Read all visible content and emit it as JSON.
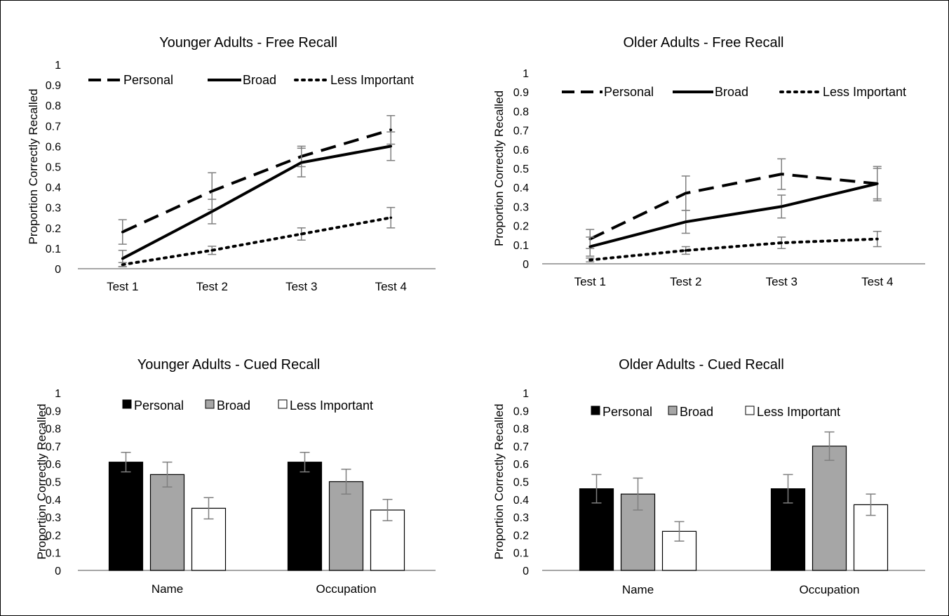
{
  "chart_data": [
    {
      "type": "line",
      "title": "Younger Adults - Free Recall",
      "xlabel": "",
      "ylabel": "Proportion Correctly Recalled",
      "ylim": [
        0,
        1
      ],
      "yticks": [
        "0",
        "0.1",
        "0.2",
        "0.3",
        "0.4",
        "0.5",
        "0.6",
        "0.7",
        "0.8",
        "0.9",
        "1"
      ],
      "categories": [
        "Test 1",
        "Test 2",
        "Test 3",
        "Test 4"
      ],
      "legend": "top",
      "series": [
        {
          "name": "Personal",
          "style": "dashed",
          "values": [
            0.18,
            0.38,
            0.55,
            0.68
          ],
          "errors": [
            0.06,
            0.09,
            0.05,
            0.07
          ]
        },
        {
          "name": "Broad",
          "style": "solid",
          "values": [
            0.05,
            0.28,
            0.52,
            0.6
          ],
          "errors": [
            0.04,
            0.06,
            0.07,
            0.07
          ]
        },
        {
          "name": "Less Important",
          "style": "dotted",
          "values": [
            0.02,
            0.09,
            0.17,
            0.25
          ],
          "errors": [
            0.01,
            0.02,
            0.03,
            0.05
          ]
        }
      ]
    },
    {
      "type": "line",
      "title": "Older Adults - Free Recall",
      "xlabel": "",
      "ylabel": "Proportion Correctly Recalled",
      "ylim": [
        0,
        1
      ],
      "yticks": [
        "0",
        "0.1",
        "0.2",
        "0.3",
        "0.4",
        "0.5",
        "0.6",
        "0.7",
        "0.8",
        "0.9",
        "1"
      ],
      "categories": [
        "Test 1",
        "Test 2",
        "Test 3",
        "Test 4"
      ],
      "legend": "top",
      "series": [
        {
          "name": "Personal",
          "style": "dashed",
          "values": [
            0.13,
            0.37,
            0.47,
            0.42
          ],
          "errors": [
            0.05,
            0.09,
            0.08,
            0.09
          ]
        },
        {
          "name": "Broad",
          "style": "solid",
          "values": [
            0.09,
            0.22,
            0.3,
            0.42
          ],
          "errors": [
            0.05,
            0.06,
            0.06,
            0.08
          ]
        },
        {
          "name": "Less Important",
          "style": "dotted",
          "values": [
            0.02,
            0.07,
            0.11,
            0.13
          ],
          "errors": [
            0.01,
            0.02,
            0.03,
            0.04
          ]
        }
      ]
    },
    {
      "type": "bar",
      "title": "Younger Adults - Cued Recall",
      "xlabel": "",
      "ylabel": "Proportion Correctly Recalled",
      "ylim": [
        0,
        1
      ],
      "yticks": [
        "0",
        "0.1",
        "0.2",
        "0.3",
        "0.4",
        "0.5",
        "0.6",
        "0.7",
        "0.8",
        "0.9",
        "1"
      ],
      "categories": [
        "Name",
        "Occupation"
      ],
      "legend": "top",
      "series": [
        {
          "name": "Personal",
          "fill": "#000000",
          "values": [
            0.61,
            0.61
          ],
          "errors": [
            0.055,
            0.055
          ]
        },
        {
          "name": "Broad",
          "fill": "#a6a6a6",
          "values": [
            0.54,
            0.5
          ],
          "errors": [
            0.07,
            0.07
          ]
        },
        {
          "name": "Less Important",
          "fill": "#ffffff",
          "values": [
            0.35,
            0.34
          ],
          "errors": [
            0.06,
            0.06
          ]
        }
      ]
    },
    {
      "type": "bar",
      "title": "Older Adults - Cued Recall",
      "xlabel": "",
      "ylabel": "Proportion Correctly Recalled",
      "ylim": [
        0,
        1
      ],
      "yticks": [
        "0",
        "0.1",
        "0.2",
        "0.3",
        "0.4",
        "0.5",
        "0.6",
        "0.7",
        "0.8",
        "0.9",
        "1"
      ],
      "categories": [
        "Name",
        "Occupation"
      ],
      "legend": "top",
      "series": [
        {
          "name": "Personal",
          "fill": "#000000",
          "values": [
            0.46,
            0.46
          ],
          "errors": [
            0.08,
            0.08
          ]
        },
        {
          "name": "Broad",
          "fill": "#a6a6a6",
          "values": [
            0.43,
            0.7
          ],
          "errors": [
            0.09,
            0.08
          ]
        },
        {
          "name": "Less Important",
          "fill": "#ffffff",
          "values": [
            0.22,
            0.37
          ],
          "errors": [
            0.055,
            0.06
          ]
        }
      ]
    }
  ]
}
